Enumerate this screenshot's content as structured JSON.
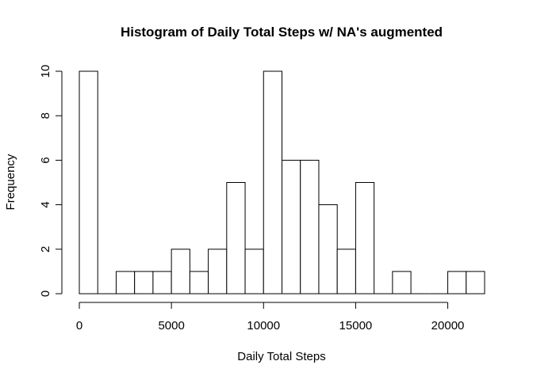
{
  "chart_data": {
    "type": "bar",
    "title": "Histogram of Daily Total Steps w/ NA's augmented",
    "xlabel": "Daily Total Steps",
    "ylabel": "Frequency",
    "bins": [
      {
        "start": 0,
        "end": 1000,
        "count": 10
      },
      {
        "start": 1000,
        "end": 2000,
        "count": 0
      },
      {
        "start": 2000,
        "end": 3000,
        "count": 1
      },
      {
        "start": 3000,
        "end": 4000,
        "count": 1
      },
      {
        "start": 4000,
        "end": 5000,
        "count": 1
      },
      {
        "start": 5000,
        "end": 6000,
        "count": 2
      },
      {
        "start": 6000,
        "end": 7000,
        "count": 1
      },
      {
        "start": 7000,
        "end": 8000,
        "count": 2
      },
      {
        "start": 8000,
        "end": 9000,
        "count": 5
      },
      {
        "start": 9000,
        "end": 10000,
        "count": 2
      },
      {
        "start": 10000,
        "end": 11000,
        "count": 10
      },
      {
        "start": 11000,
        "end": 12000,
        "count": 6
      },
      {
        "start": 12000,
        "end": 13000,
        "count": 6
      },
      {
        "start": 13000,
        "end": 14000,
        "count": 4
      },
      {
        "start": 14000,
        "end": 15000,
        "count": 2
      },
      {
        "start": 15000,
        "end": 16000,
        "count": 5
      },
      {
        "start": 16000,
        "end": 17000,
        "count": 0
      },
      {
        "start": 17000,
        "end": 18000,
        "count": 1
      },
      {
        "start": 18000,
        "end": 19000,
        "count": 0
      },
      {
        "start": 19000,
        "end": 20000,
        "count": 0
      },
      {
        "start": 20000,
        "end": 21000,
        "count": 1
      },
      {
        "start": 21000,
        "end": 22000,
        "count": 1
      }
    ],
    "xlim": [
      0,
      22000
    ],
    "ylim": [
      0,
      10
    ],
    "x_ticks": [
      0,
      5000,
      10000,
      15000,
      20000
    ],
    "x_tick_labels": [
      "0",
      "5000",
      "10000",
      "15000",
      "20000"
    ],
    "y_ticks": [
      0,
      2,
      4,
      6,
      8,
      10
    ],
    "y_tick_labels": [
      "0",
      "2",
      "4",
      "6",
      "8",
      "10"
    ],
    "grid": false,
    "bar_fill": "#ffffff",
    "bar_stroke": "#000000"
  }
}
